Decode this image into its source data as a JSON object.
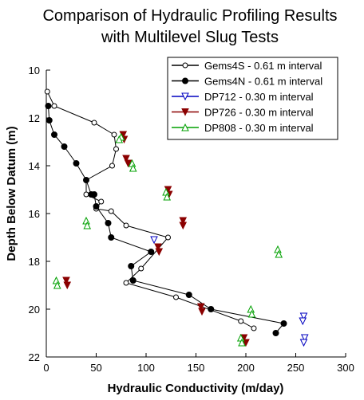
{
  "chart_data": {
    "type": "scatter",
    "title": [
      "Comparison of Hydraulic Profiling Results",
      "with Multilevel Slug Tests"
    ],
    "xlabel": "Hydraulic Conductivity (m/day)",
    "ylabel": "Depth Below Datum (m)",
    "xlim": [
      0,
      300
    ],
    "ylim": [
      10,
      22
    ],
    "y_inverted": true,
    "x_ticks": [
      0,
      50,
      100,
      150,
      200,
      250,
      300
    ],
    "y_ticks": [
      10,
      12,
      14,
      16,
      18,
      20,
      22
    ],
    "grid": false,
    "legend_position": "top-right",
    "series": [
      {
        "name": "Gems4S - 0.61 m interval",
        "marker": "open-circle-line",
        "color": "#000000",
        "points": [
          {
            "x": 1,
            "y": 10.9
          },
          {
            "x": 8,
            "y": 11.5
          },
          {
            "x": 48,
            "y": 12.2
          },
          {
            "x": 68,
            "y": 12.7
          },
          {
            "x": 70,
            "y": 13.3
          },
          {
            "x": 66,
            "y": 14.0
          },
          {
            "x": 40,
            "y": 14.6
          },
          {
            "x": 40,
            "y": 15.2
          },
          {
            "x": 55,
            "y": 15.5
          },
          {
            "x": 50,
            "y": 15.8
          },
          {
            "x": 65,
            "y": 15.9
          },
          {
            "x": 80,
            "y": 16.5
          },
          {
            "x": 122,
            "y": 17.0
          },
          {
            "x": 95,
            "y": 18.3
          },
          {
            "x": 80,
            "y": 18.9
          },
          {
            "x": 130,
            "y": 19.5
          },
          {
            "x": 195,
            "y": 20.5
          },
          {
            "x": 208,
            "y": 20.8
          }
        ]
      },
      {
        "name": "Gems4N - 0.61 m interval",
        "marker": "filled-circle-line",
        "color": "#000000",
        "points": [
          {
            "x": 2,
            "y": 11.5
          },
          {
            "x": 3,
            "y": 12.1
          },
          {
            "x": 8,
            "y": 12.7
          },
          {
            "x": 18,
            "y": 13.2
          },
          {
            "x": 30,
            "y": 13.9
          },
          {
            "x": 40,
            "y": 14.6
          },
          {
            "x": 45,
            "y": 15.2
          },
          {
            "x": 48,
            "y": 15.2
          },
          {
            "x": 50,
            "y": 15.7
          },
          {
            "x": 62,
            "y": 16.4
          },
          {
            "x": 65,
            "y": 17.0
          },
          {
            "x": 105,
            "y": 17.6
          },
          {
            "x": 85,
            "y": 18.2
          },
          {
            "x": 87,
            "y": 18.8
          },
          {
            "x": 143,
            "y": 19.4
          },
          {
            "x": 165,
            "y": 20.0
          },
          {
            "x": 238,
            "y": 20.6
          },
          {
            "x": 230,
            "y": 21.0
          }
        ]
      },
      {
        "name": "DP712 - 0.30 m interval",
        "marker": "open-triangle-down",
        "color": "#0000c0",
        "points": [
          {
            "x": 108,
            "y": 17.1
          },
          {
            "x": 258,
            "y": 20.3
          },
          {
            "x": 257,
            "y": 20.5
          },
          {
            "x": 259,
            "y": 21.2
          },
          {
            "x": 258,
            "y": 21.4
          }
        ]
      },
      {
        "name": "DP726 - 0.30 m interval",
        "marker": "filled-triangle-down",
        "color": "#8b0000",
        "points": [
          {
            "x": 77,
            "y": 12.7
          },
          {
            "x": 78,
            "y": 12.9
          },
          {
            "x": 80,
            "y": 13.7
          },
          {
            "x": 82,
            "y": 13.9
          },
          {
            "x": 122,
            "y": 15.0
          },
          {
            "x": 123,
            "y": 15.2
          },
          {
            "x": 137,
            "y": 16.3
          },
          {
            "x": 137,
            "y": 16.5
          },
          {
            "x": 112,
            "y": 17.4
          },
          {
            "x": 113,
            "y": 17.6
          },
          {
            "x": 20,
            "y": 18.8
          },
          {
            "x": 21,
            "y": 19.0
          },
          {
            "x": 155,
            "y": 19.9
          },
          {
            "x": 156,
            "y": 20.1
          },
          {
            "x": 198,
            "y": 21.2
          },
          {
            "x": 200,
            "y": 21.4
          }
        ]
      },
      {
        "name": "DP808 - 0.30 m interval",
        "marker": "open-triangle-up",
        "color": "#00a000",
        "points": [
          {
            "x": 75,
            "y": 12.8
          },
          {
            "x": 73,
            "y": 12.9
          },
          {
            "x": 86,
            "y": 13.9
          },
          {
            "x": 87,
            "y": 14.1
          },
          {
            "x": 120,
            "y": 15.1
          },
          {
            "x": 121,
            "y": 15.3
          },
          {
            "x": 40,
            "y": 16.3
          },
          {
            "x": 41,
            "y": 16.5
          },
          {
            "x": 232,
            "y": 17.5
          },
          {
            "x": 233,
            "y": 17.7
          },
          {
            "x": 10,
            "y": 18.8
          },
          {
            "x": 11,
            "y": 19.0
          },
          {
            "x": 205,
            "y": 20.0
          },
          {
            "x": 206,
            "y": 20.2
          },
          {
            "x": 195,
            "y": 21.2
          },
          {
            "x": 196,
            "y": 21.4
          }
        ]
      }
    ]
  }
}
